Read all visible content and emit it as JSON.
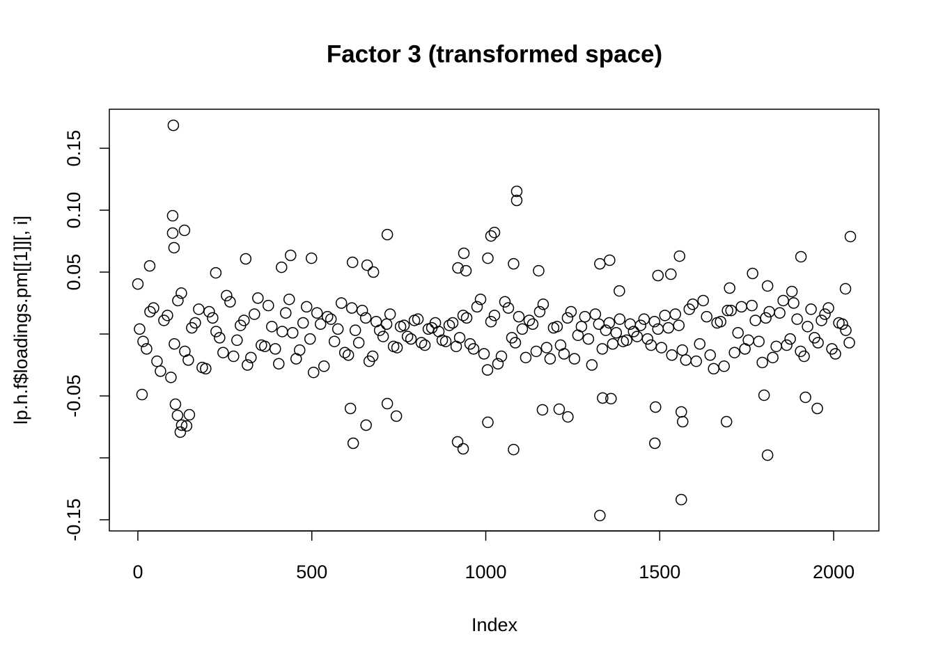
{
  "chart_data": {
    "type": "scatter",
    "title": "Factor 3 (transformed space)",
    "x_label": "Index",
    "y_label": "lp.h.f$loadings.pm[[1]][, i]",
    "color": "#000000",
    "xlim": [
      -82,
      2130
    ],
    "ylim": [
      -0.159,
      0.1815
    ],
    "xticks": [
      0,
      500,
      1000,
      1500,
      2000
    ],
    "yticks": [
      -0.15,
      {
        "value": -0.1,
        "label": null
      },
      -0.05,
      {
        "value": 0,
        "label": null
      },
      0.05,
      {
        "value": 0.1,
        "label": "0.10"
      },
      0.15
    ],
    "x": [
      102,
      100,
      100,
      104,
      134,
      1089,
      1089,
      1015,
      1025,
      717,
      2048,
      1328,
      1562,
      1810,
      619,
      919,
      935,
      1080,
      1486,
      1692,
      656,
      1006,
      1566,
      122,
      126,
      140,
      114,
      148,
      108,
      743,
      1236,
      1211,
      1163,
      611,
      717,
      1488,
      1562,
      1953,
      1336,
      1360,
      1800,
      12,
      1919,
      0,
      34,
      310,
      499,
      617,
      659,
      677,
      937,
      1006,
      1080,
      1152,
      1328,
      1356,
      1557,
      1767,
      1906,
      1532,
      1495,
      439,
      413,
      224,
      920,
      943,
      1701,
      1810,
      1880,
      2034,
      1384,
      5,
      25,
      45,
      65,
      85,
      105,
      125,
      145,
      165,
      185,
      205,
      225,
      245,
      265,
      285,
      305,
      325,
      345,
      365,
      385,
      405,
      425,
      445,
      465,
      485,
      505,
      525,
      545,
      565,
      585,
      605,
      625,
      645,
      665,
      685,
      705,
      725,
      745,
      765,
      785,
      805,
      825,
      845,
      865,
      885,
      905,
      925,
      945,
      965,
      985,
      1005,
      1025,
      1045,
      1065,
      1085,
      1105,
      1125,
      1145,
      1165,
      1185,
      1205,
      1225,
      1245,
      1265,
      1285,
      1305,
      1325,
      1345,
      1365,
      1385,
      1405,
      1425,
      1445,
      1465,
      1485,
      1505,
      1525,
      1545,
      1565,
      1585,
      1605,
      1625,
      1645,
      1665,
      1685,
      1705,
      1725,
      1745,
      1765,
      1785,
      1805,
      1825,
      1845,
      1865,
      1885,
      1905,
      1925,
      1945,
      1965,
      1985,
      2005,
      2025,
      2045,
      15,
      35,
      55,
      75,
      95,
      115,
      135,
      155,
      175,
      195,
      215,
      235,
      255,
      275,
      295,
      315,
      335,
      355,
      375,
      395,
      415,
      435,
      455,
      475,
      495,
      515,
      535,
      555,
      575,
      595,
      615,
      635,
      655,
      675,
      695,
      715,
      735,
      755,
      775,
      795,
      815,
      835,
      855,
      875,
      895,
      915,
      935,
      955,
      975,
      995,
      1015,
      1035,
      1055,
      1075,
      1095,
      1115,
      1135,
      1155,
      1175,
      1195,
      1215,
      1235,
      1255,
      1275,
      1295,
      1315,
      1335,
      1355,
      1375,
      1395,
      1415,
      1435,
      1455,
      1475,
      1495,
      1515,
      1535,
      1555,
      1575,
      1595,
      1615,
      1635,
      1655,
      1675,
      1695,
      1715,
      1735,
      1755,
      1775,
      1795,
      1815,
      1835,
      1855,
      1875,
      1895,
      1915,
      1935,
      1955,
      1975,
      1995,
      2015,
      2035
    ],
    "values": [
      0.1685,
      0.0955,
      0.0815,
      0.0697,
      0.0837,
      0.1152,
      0.1079,
      0.0792,
      0.082,
      0.0803,
      0.0787,
      -0.1466,
      -0.1337,
      -0.0978,
      -0.0882,
      -0.0871,
      -0.0927,
      -0.0933,
      -0.0882,
      -0.0708,
      -0.0736,
      -0.0713,
      -0.0708,
      -0.0792,
      -0.0736,
      -0.0742,
      -0.0657,
      -0.0652,
      -0.0567,
      -0.0663,
      -0.0669,
      -0.0607,
      -0.0612,
      -0.0601,
      -0.0562,
      -0.059,
      -0.0629,
      -0.0601,
      -0.0517,
      -0.0522,
      -0.0494,
      -0.0489,
      -0.0511,
      0.0404,
      0.055,
      0.0607,
      0.0612,
      0.0579,
      0.0556,
      0.05,
      0.0652,
      0.0612,
      0.0567,
      0.0511,
      0.0567,
      0.0596,
      0.0629,
      0.0489,
      0.0624,
      0.0483,
      0.0472,
      0.0635,
      0.0539,
      0.0494,
      0.0534,
      0.0511,
      0.0371,
      0.0388,
      0.0343,
      0.0365,
      0.0348,
      0.004,
      -0.012,
      0.021,
      -0.03,
      0.015,
      -0.008,
      0.033,
      -0.021,
      0.009,
      -0.027,
      0.018,
      0.002,
      -0.015,
      0.026,
      -0.005,
      0.011,
      -0.019,
      0.029,
      -0.01,
      0.006,
      -0.024,
      0.017,
      0.001,
      -0.013,
      0.022,
      -0.031,
      0.008,
      0.014,
      -0.006,
      0.025,
      -0.017,
      0.003,
      0.019,
      -0.022,
      0.01,
      -0.002,
      0.016,
      -0.011,
      0.007,
      -0.004,
      0.012,
      -0.009,
      0.005,
      0.002,
      -0.006,
      0.009,
      -0.003,
      0.013,
      -0.012,
      0.028,
      -0.029,
      0.015,
      -0.018,
      0.021,
      -0.007,
      0.004,
      0.011,
      -0.014,
      0.024,
      -0.02,
      0.006,
      -0.016,
      0.018,
      -0.001,
      0.014,
      -0.025,
      0.008,
      0.003,
      -0.008,
      0.012,
      -0.005,
      0.002,
      0.007,
      -0.004,
      0.01,
      -0.011,
      0.005,
      0.016,
      -0.013,
      0.02,
      -0.022,
      0.027,
      -0.017,
      0.009,
      -0.026,
      0.019,
      0.001,
      -0.012,
      0.023,
      -0.006,
      0.013,
      -0.019,
      0.017,
      -0.009,
      0.025,
      -0.014,
      0.006,
      -0.003,
      0.011,
      0.021,
      -0.016,
      0.008,
      -0.007,
      -0.006,
      0.018,
      -0.022,
      0.011,
      -0.035,
      0.027,
      -0.014,
      0.005,
      0.02,
      -0.028,
      0.013,
      -0.003,
      0.031,
      -0.018,
      0.007,
      -0.025,
      0.016,
      -0.009,
      0.023,
      -0.012,
      0.002,
      0.028,
      -0.02,
      0.009,
      -0.004,
      0.017,
      -0.026,
      0.012,
      0.004,
      -0.015,
      0.021,
      -0.007,
      0.013,
      -0.018,
      0.003,
      0.008,
      -0.01,
      0.006,
      -0.002,
      0.011,
      -0.007,
      0.004,
      0.009,
      -0.005,
      0.007,
      -0.01,
      0.015,
      -0.008,
      0.022,
      -0.016,
      0.01,
      -0.024,
      0.026,
      -0.003,
      0.014,
      -0.019,
      0.008,
      0.018,
      -0.011,
      0.005,
      -0.009,
      0.013,
      -0.02,
      0.006,
      -0.004,
      0.016,
      -0.012,
      0.009,
      0.001,
      -0.006,
      0.008,
      -0.002,
      0.012,
      -0.009,
      0.004,
      0.015,
      -0.017,
      0.007,
      -0.021,
      0.024,
      -0.008,
      0.014,
      -0.028,
      0.01,
      0.019,
      -0.015,
      0.022,
      -0.005,
      0.011,
      -0.023,
      0.018,
      -0.01,
      0.027,
      -0.004,
      0.012,
      -0.018,
      0.02,
      -0.007,
      0.016,
      -0.012,
      0.009,
      0.003
    ]
  }
}
